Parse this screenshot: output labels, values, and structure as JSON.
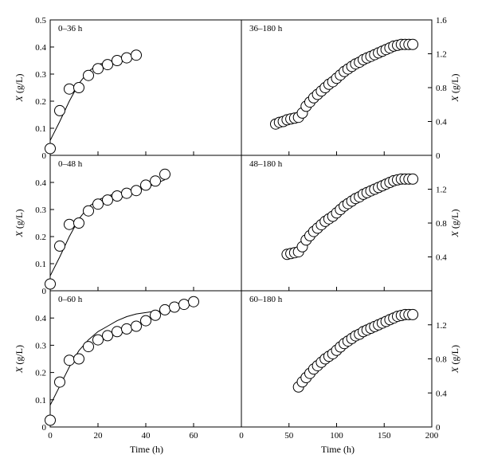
{
  "figure": {
    "left_ylabel_var": "X",
    "left_ylabel_unit": " (g/L)",
    "right_ylabel_var": "X",
    "right_ylabel_unit": " (g/L)",
    "left_xlabel": "Time (h)",
    "right_xlabel": "Time (h)",
    "left_xticks": [
      "0",
      "20",
      "40",
      "60"
    ],
    "right_xticks": [
      "0",
      "50",
      "100",
      "150",
      "200"
    ]
  },
  "chart_data": [
    {
      "panel": "left-1",
      "type": "scatter",
      "title": "0–36 h",
      "xlim": [
        0,
        80
      ],
      "ylim": [
        0,
        0.5
      ],
      "yticks": [
        "0",
        "0.1",
        "0.2",
        "0.3",
        "0.4",
        "0.5"
      ],
      "series": [
        {
          "kind": "markers",
          "x": [
            0,
            4,
            8,
            12,
            16,
            20,
            24,
            28,
            32,
            36
          ],
          "y": [
            0.025,
            0.165,
            0.245,
            0.25,
            0.295,
            0.32,
            0.335,
            0.35,
            0.36,
            0.37
          ]
        },
        {
          "kind": "line",
          "x": [
            0,
            4,
            8,
            12,
            16,
            20,
            24
          ],
          "y": [
            0.055,
            0.125,
            0.2,
            0.265,
            0.31,
            0.335,
            0.345
          ]
        }
      ]
    },
    {
      "panel": "right-1",
      "type": "scatter",
      "title": "36–180 h",
      "xlim": [
        0,
        200
      ],
      "ylim": [
        0,
        1.6
      ],
      "yticks": [
        "0",
        "0.4",
        "0.8",
        "1.2",
        "1.6"
      ],
      "series": [
        {
          "kind": "markers",
          "x": [
            36,
            40,
            44,
            48,
            52,
            56,
            60,
            64,
            68,
            72,
            76,
            80,
            84,
            88,
            92,
            96,
            100,
            104,
            108,
            112,
            116,
            120,
            124,
            128,
            132,
            136,
            140,
            144,
            148,
            152,
            156,
            160,
            164,
            168,
            172,
            176,
            180
          ],
          "y": [
            0.37,
            0.39,
            0.4,
            0.42,
            0.43,
            0.44,
            0.45,
            0.5,
            0.58,
            0.63,
            0.68,
            0.72,
            0.76,
            0.8,
            0.84,
            0.87,
            0.91,
            0.95,
            0.99,
            1.02,
            1.05,
            1.08,
            1.1,
            1.13,
            1.15,
            1.17,
            1.19,
            1.21,
            1.23,
            1.25,
            1.27,
            1.29,
            1.3,
            1.31,
            1.31,
            1.31,
            1.31
          ]
        },
        {
          "kind": "line",
          "x": [
            36,
            48,
            60,
            72,
            84,
            96,
            108,
            120,
            132,
            144,
            156,
            168,
            180
          ],
          "y": [
            0.36,
            0.41,
            0.48,
            0.62,
            0.75,
            0.86,
            0.97,
            1.06,
            1.14,
            1.2,
            1.25,
            1.29,
            1.31
          ]
        }
      ]
    },
    {
      "panel": "left-2",
      "type": "scatter",
      "title": "0–48 h",
      "xlim": [
        0,
        80
      ],
      "ylim": [
        0,
        0.5
      ],
      "yticks": [
        "0",
        "0.1",
        "0.2",
        "0.3",
        "0.4"
      ],
      "series": [
        {
          "kind": "markers",
          "x": [
            0,
            4,
            8,
            12,
            16,
            20,
            24,
            28,
            32,
            36,
            40,
            44,
            48
          ],
          "y": [
            0.025,
            0.165,
            0.245,
            0.25,
            0.295,
            0.32,
            0.335,
            0.35,
            0.36,
            0.37,
            0.39,
            0.405,
            0.43
          ]
        },
        {
          "kind": "line",
          "x": [
            0,
            4,
            8,
            12,
            16,
            20,
            24,
            28,
            32,
            36,
            40,
            44,
            48
          ],
          "y": [
            0.055,
            0.125,
            0.2,
            0.265,
            0.31,
            0.335,
            0.35,
            0.36,
            0.365,
            0.37,
            0.38,
            0.395,
            0.41
          ]
        }
      ]
    },
    {
      "panel": "right-2",
      "type": "scatter",
      "title": "48–180 h",
      "xlim": [
        0,
        200
      ],
      "ylim": [
        0,
        1.6
      ],
      "yticks": [
        "0.4",
        "0.8",
        "1.2"
      ],
      "series": [
        {
          "kind": "markers",
          "x": [
            48,
            52,
            56,
            60,
            64,
            68,
            72,
            76,
            80,
            84,
            88,
            92,
            96,
            100,
            104,
            108,
            112,
            116,
            120,
            124,
            128,
            132,
            136,
            140,
            144,
            148,
            152,
            156,
            160,
            164,
            168,
            172,
            176,
            180
          ],
          "y": [
            0.43,
            0.44,
            0.45,
            0.46,
            0.52,
            0.6,
            0.65,
            0.7,
            0.74,
            0.78,
            0.82,
            0.85,
            0.88,
            0.92,
            0.96,
            1.0,
            1.03,
            1.06,
            1.09,
            1.11,
            1.14,
            1.16,
            1.18,
            1.2,
            1.22,
            1.24,
            1.26,
            1.28,
            1.3,
            1.31,
            1.32,
            1.32,
            1.32,
            1.32
          ]
        },
        {
          "kind": "line",
          "x": [
            48,
            60,
            72,
            84,
            96,
            108,
            120,
            132,
            144,
            156,
            168,
            180
          ],
          "y": [
            0.42,
            0.5,
            0.64,
            0.77,
            0.88,
            0.98,
            1.07,
            1.15,
            1.21,
            1.26,
            1.3,
            1.32
          ]
        }
      ]
    },
    {
      "panel": "left-3",
      "type": "scatter",
      "title": "0–60 h",
      "xlim": [
        0,
        80
      ],
      "ylim": [
        0,
        0.5
      ],
      "yticks": [
        "0",
        "0.1",
        "0.2",
        "0.3",
        "0.4"
      ],
      "series": [
        {
          "kind": "markers",
          "x": [
            0,
            4,
            8,
            12,
            16,
            20,
            24,
            28,
            32,
            36,
            40,
            44,
            48,
            52,
            56,
            60
          ],
          "y": [
            0.025,
            0.165,
            0.245,
            0.25,
            0.295,
            0.32,
            0.335,
            0.35,
            0.36,
            0.37,
            0.39,
            0.41,
            0.43,
            0.44,
            0.45,
            0.46
          ]
        },
        {
          "kind": "line",
          "x": [
            0,
            4,
            8,
            12,
            16,
            20,
            24,
            28,
            32,
            36,
            40,
            44,
            48
          ],
          "y": [
            0.08,
            0.15,
            0.22,
            0.28,
            0.32,
            0.35,
            0.37,
            0.39,
            0.405,
            0.415,
            0.42,
            0.425,
            0.425
          ]
        }
      ]
    },
    {
      "panel": "right-3",
      "type": "scatter",
      "title": "60–180 h",
      "xlim": [
        0,
        200
      ],
      "ylim": [
        0,
        1.6
      ],
      "yticks": [
        "0",
        "0.4",
        "0.8",
        "1.2"
      ],
      "series": [
        {
          "kind": "markers",
          "x": [
            60,
            64,
            68,
            72,
            76,
            80,
            84,
            88,
            92,
            96,
            100,
            104,
            108,
            112,
            116,
            120,
            124,
            128,
            132,
            136,
            140,
            144,
            148,
            152,
            156,
            160,
            164,
            168,
            172,
            176,
            180
          ],
          "y": [
            0.47,
            0.53,
            0.58,
            0.63,
            0.68,
            0.72,
            0.76,
            0.8,
            0.83,
            0.86,
            0.9,
            0.94,
            0.98,
            1.01,
            1.04,
            1.07,
            1.09,
            1.12,
            1.14,
            1.16,
            1.18,
            1.2,
            1.22,
            1.24,
            1.26,
            1.28,
            1.3,
            1.31,
            1.32,
            1.32,
            1.32
          ]
        },
        {
          "kind": "line",
          "x": [
            60,
            72,
            84,
            96,
            108,
            120,
            132,
            144,
            156,
            168,
            180
          ],
          "y": [
            0.46,
            0.6,
            0.74,
            0.86,
            0.97,
            1.06,
            1.14,
            1.2,
            1.26,
            1.3,
            1.32
          ]
        }
      ]
    }
  ]
}
